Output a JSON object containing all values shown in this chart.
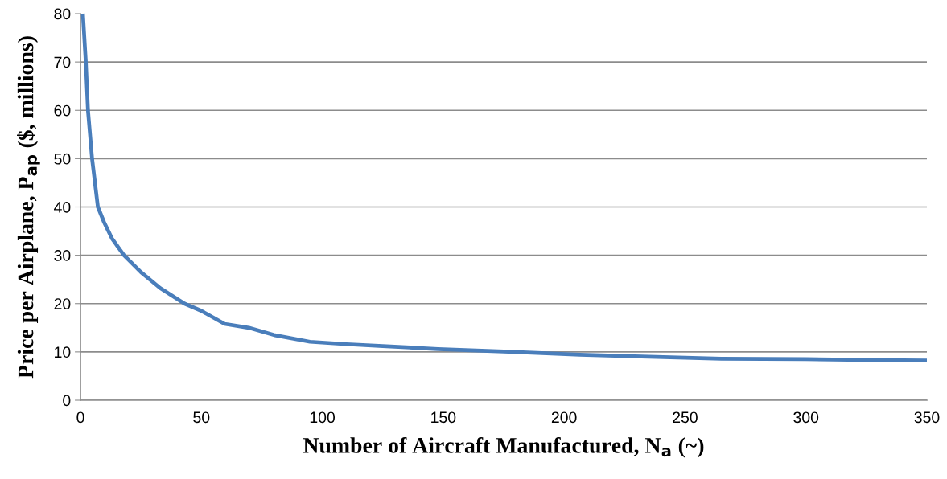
{
  "chart_data": {
    "type": "line",
    "xlabel": "Number of Aircraft Manufactured, N$_{a}$ (~)",
    "ylabel": "Price per Airplane, P$_{ap}$ ($, millions)",
    "series": [
      {
        "color": "#4a7ebb",
        "x": [
          1,
          2.2,
          3.1,
          4.8,
          7.2,
          9.8,
          13,
          18,
          25,
          33,
          43,
          50,
          59.6,
          69.6,
          80,
          94.9,
          110,
          125,
          147.8,
          175,
          206.5,
          235,
          265,
          300,
          330,
          350
        ],
        "values": [
          80,
          70,
          60,
          50,
          40,
          36.8,
          33.5,
          30,
          26.5,
          23.2,
          20,
          18.5,
          15.8,
          15,
          13.5,
          12.1,
          11.6,
          11.2,
          10.6,
          10.1,
          9.4,
          9.0,
          8.6,
          8.5,
          8.3,
          8.2
        ]
      }
    ],
    "xlim": [
      0,
      350
    ],
    "xticks": [
      0,
      50,
      100,
      150,
      200,
      250,
      300,
      350
    ],
    "ylim": [
      0,
      80
    ],
    "yticks": [
      0,
      10,
      20,
      30,
      40,
      50,
      60,
      70,
      80
    ],
    "grid": "y",
    "marker": "none",
    "line_style": "solid"
  }
}
